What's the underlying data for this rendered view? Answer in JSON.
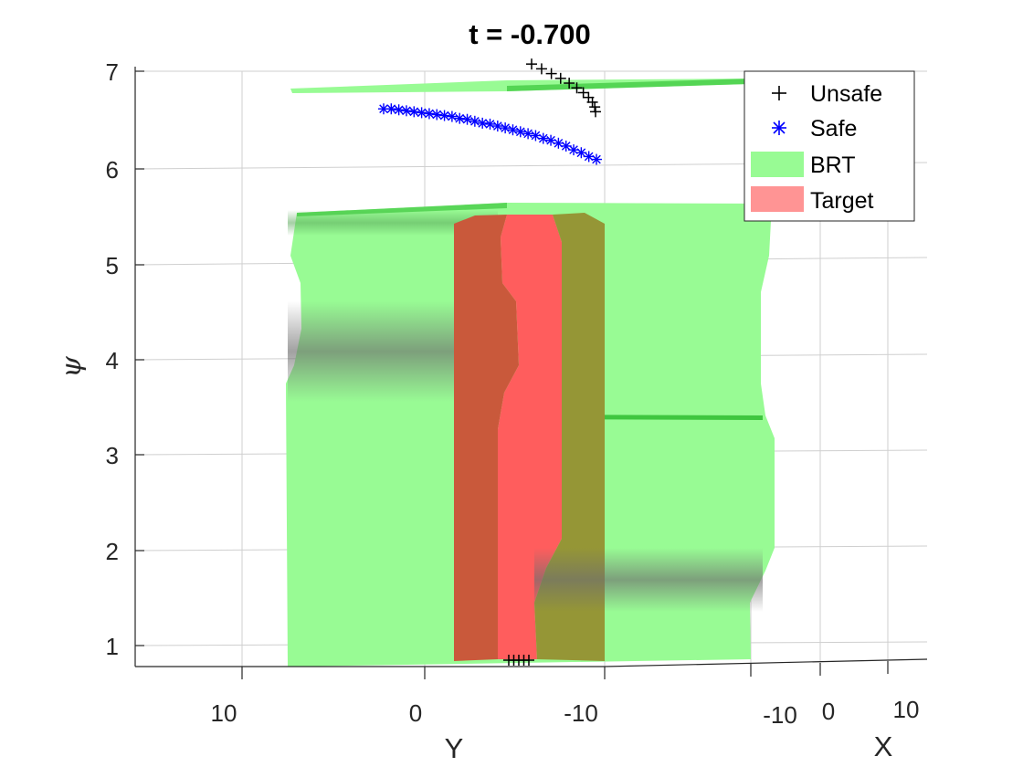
{
  "chart_data": {
    "type": "isosurface-3d",
    "title": "t = -0.700",
    "xlabel": "X",
    "ylabel": "Y",
    "zlabel": "ψ",
    "z_ticks": [
      "1",
      "2",
      "3",
      "4",
      "5",
      "6",
      "7"
    ],
    "y_ticks": [
      "10",
      "0",
      "-10"
    ],
    "x_ticks": [
      "-10",
      "0",
      "10"
    ],
    "zlim": [
      0.8,
      7.1
    ],
    "grid": true,
    "legend_position": "top-right",
    "legend": [
      {
        "label": "Unsafe",
        "marker": "+",
        "color": "#000000"
      },
      {
        "label": "Safe",
        "marker": "*",
        "color": "#0000ff"
      },
      {
        "label": "BRT",
        "marker": "patch",
        "color": "#8cf58c"
      },
      {
        "label": "Target",
        "marker": "patch",
        "color": "#ff8c8c"
      }
    ],
    "series": [
      {
        "name": "Unsafe",
        "color": "#000000",
        "psi": [
          7.1,
          7.05,
          7.0,
          6.95,
          6.9,
          6.85,
          6.8,
          6.75,
          6.7,
          6.65,
          6.6
        ]
      },
      {
        "name": "Safe",
        "color": "#0000ff",
        "psi": [
          6.63,
          6.63,
          6.62,
          6.61,
          6.6,
          6.59,
          6.58,
          6.57,
          6.56,
          6.55,
          6.53,
          6.52,
          6.5,
          6.48,
          6.47,
          6.45,
          6.43,
          6.41,
          6.39,
          6.37,
          6.35,
          6.32,
          6.3,
          6.27,
          6.24,
          6.2,
          6.17,
          6.13,
          6.1
        ]
      },
      {
        "name": "BRT",
        "color": "#00ff00",
        "psi_range": [
          0.8,
          5.6
        ]
      },
      {
        "name": "Target",
        "color": "#ff0000",
        "psi_range": [
          0.8,
          5.55
        ]
      }
    ]
  }
}
